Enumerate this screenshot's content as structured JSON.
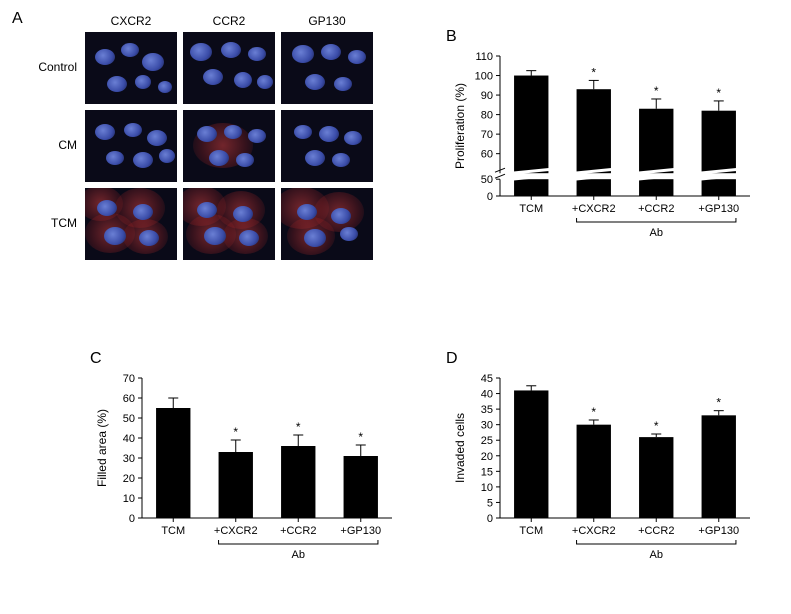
{
  "panelA": {
    "label": "A",
    "col_headers": [
      "CXCR2",
      "CCR2",
      "GP130"
    ],
    "row_headers": [
      "Control",
      "CM",
      "TCM"
    ],
    "cells": [
      [
        {
          "red": false,
          "nuclei": [
            [
              20,
              25,
              20,
              16
            ],
            [
              45,
              18,
              18,
              14
            ],
            [
              68,
              30,
              22,
              18
            ],
            [
              32,
              52,
              20,
              16
            ],
            [
              58,
              50,
              16,
              14
            ],
            [
              80,
              55,
              14,
              12
            ]
          ]
        },
        {
          "red": false,
          "nuclei": [
            [
              18,
              20,
              22,
              18
            ],
            [
              48,
              18,
              20,
              16
            ],
            [
              74,
              22,
              18,
              14
            ],
            [
              30,
              45,
              20,
              16
            ],
            [
              60,
              48,
              18,
              16
            ],
            [
              82,
              50,
              16,
              14
            ]
          ]
        },
        {
          "red": false,
          "nuclei": [
            [
              22,
              22,
              22,
              18
            ],
            [
              50,
              20,
              20,
              16
            ],
            [
              76,
              25,
              18,
              14
            ],
            [
              34,
              50,
              20,
              16
            ],
            [
              62,
              52,
              18,
              14
            ]
          ]
        }
      ],
      [
        {
          "red": false,
          "redcyto": [],
          "nuclei": [
            [
              20,
              22,
              20,
              16
            ],
            [
              48,
              20,
              18,
              14
            ],
            [
              72,
              28,
              20,
              16
            ],
            [
              30,
              48,
              18,
              14
            ],
            [
              58,
              50,
              20,
              16
            ],
            [
              82,
              46,
              16,
              14
            ]
          ]
        },
        {
          "red": true,
          "redcyto": [
            [
              40,
              35,
              60,
              45
            ]
          ],
          "nuclei": [
            [
              24,
              24,
              20,
              16
            ],
            [
              50,
              22,
              18,
              14
            ],
            [
              74,
              26,
              18,
              14
            ],
            [
              36,
              48,
              20,
              16
            ],
            [
              62,
              50,
              18,
              14
            ]
          ]
        },
        {
          "red": false,
          "nuclei": [
            [
              22,
              22,
              18,
              14
            ],
            [
              48,
              24,
              20,
              16
            ],
            [
              72,
              28,
              18,
              14
            ],
            [
              34,
              48,
              20,
              16
            ],
            [
              60,
              50,
              18,
              14
            ]
          ]
        }
      ],
      [
        {
          "red": true,
          "redcyto": [
            [
              15,
              15,
              45,
              35
            ],
            [
              55,
              20,
              50,
              40
            ],
            [
              25,
              45,
              50,
              40
            ],
            [
              60,
              48,
              45,
              35
            ]
          ],
          "nuclei": [
            [
              22,
              20,
              20,
              16
            ],
            [
              58,
              24,
              20,
              16
            ],
            [
              30,
              48,
              22,
              18
            ],
            [
              64,
              50,
              20,
              16
            ]
          ]
        },
        {
          "red": true,
          "redcyto": [
            [
              18,
              18,
              50,
              40
            ],
            [
              58,
              22,
              48,
              38
            ],
            [
              28,
              46,
              50,
              40
            ],
            [
              62,
              48,
              45,
              36
            ]
          ],
          "nuclei": [
            [
              24,
              22,
              20,
              16
            ],
            [
              60,
              26,
              20,
              16
            ],
            [
              32,
              48,
              22,
              18
            ],
            [
              66,
              50,
              20,
              16
            ]
          ]
        },
        {
          "red": true,
          "redcyto": [
            [
              20,
              20,
              55,
              42
            ],
            [
              58,
              24,
              50,
              40
            ],
            [
              30,
              48,
              48,
              38
            ]
          ],
          "nuclei": [
            [
              26,
              24,
              20,
              16
            ],
            [
              60,
              28,
              20,
              16
            ],
            [
              34,
              50,
              22,
              18
            ],
            [
              68,
              46,
              18,
              14
            ]
          ]
        }
      ]
    ]
  },
  "panelB": {
    "label": "B",
    "type": "bar",
    "ylabel": "Proliferation (%)",
    "categories": [
      "TCM",
      "+CXCR2",
      "+CCR2",
      "+GP130"
    ],
    "values": [
      100,
      93,
      83,
      82
    ],
    "errors": [
      2.5,
      4.5,
      5,
      5
    ],
    "stars": [
      false,
      true,
      true,
      true
    ],
    "ylim": [
      0,
      110
    ],
    "ytick_step": 10,
    "break_at": 50,
    "bar_color": "#000000",
    "bracket_label": "Ab",
    "bracket_from": 1,
    "bracket_to": 3,
    "label_fontsize": 12
  },
  "panelC": {
    "label": "C",
    "type": "bar",
    "ylabel": "Filled area (%)",
    "categories": [
      "TCM",
      "+CXCR2",
      "+CCR2",
      "+GP130"
    ],
    "values": [
      55,
      33,
      36,
      31
    ],
    "errors": [
      5,
      6,
      5.5,
      5.5
    ],
    "stars": [
      false,
      true,
      true,
      true
    ],
    "ylim": [
      0,
      70
    ],
    "ytick_step": 10,
    "bar_color": "#000000",
    "bracket_label": "Ab",
    "bracket_from": 1,
    "bracket_to": 3,
    "label_fontsize": 12
  },
  "panelD": {
    "label": "D",
    "type": "bar",
    "ylabel": "Invaded cells",
    "categories": [
      "TCM",
      "+CXCR2",
      "+CCR2",
      "+GP130"
    ],
    "values": [
      41,
      30,
      26,
      33
    ],
    "errors": [
      1.5,
      1.5,
      1,
      1.5
    ],
    "stars": [
      false,
      true,
      true,
      true
    ],
    "ylim": [
      0,
      45
    ],
    "ytick_step": 5,
    "bar_color": "#000000",
    "bracket_label": "Ab",
    "bracket_from": 1,
    "bracket_to": 3,
    "label_fontsize": 12
  }
}
